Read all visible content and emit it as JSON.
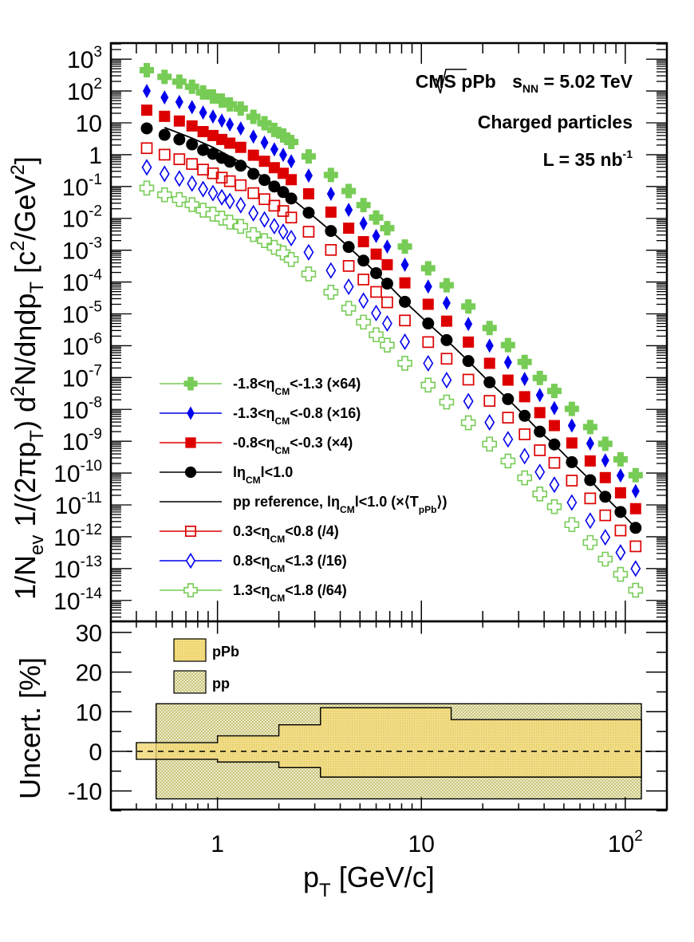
{
  "chart_data": [
    {
      "type": "scatter",
      "panel": "upper",
      "xscale": "log",
      "yscale": "log",
      "xlim": [
        0.3,
        160
      ],
      "ylim": [
        2.2e-15,
        3200.0
      ],
      "xlabel": "p_T [GeV/c]",
      "ylabel": "1/N_ev 1/(2πp_T) d²N/dηdp_T [c²/GeV²]",
      "ylabel_parts": {
        "a": "1/N",
        "a_sub": "ev",
        "b": " 1/(2πp",
        "b_sub": "T",
        "c": ") d",
        "c_sup": "2",
        "d": "N/dηdp",
        "d_sub": "T",
        "e": " [c",
        "e_sup": "2",
        "f": "/GeV",
        "f_sup": "2",
        "g": "]"
      },
      "y_ticks": [
        {
          "base": "10",
          "exp": "3",
          "value": 1000.0
        },
        {
          "base": "10",
          "exp": "2",
          "value": 100.0
        },
        {
          "base": "10",
          "exp": "",
          "value": 10
        },
        {
          "base": "1",
          "exp": "",
          "value": 1
        },
        {
          "base": "10",
          "exp": "-1",
          "value": 0.1
        },
        {
          "base": "10",
          "exp": "-2",
          "value": 0.01
        },
        {
          "base": "10",
          "exp": "-3",
          "value": 0.001
        },
        {
          "base": "10",
          "exp": "-4",
          "value": 0.0001
        },
        {
          "base": "10",
          "exp": "-5",
          "value": 1e-05
        },
        {
          "base": "10",
          "exp": "-6",
          "value": 1e-06
        },
        {
          "base": "10",
          "exp": "-7",
          "value": 1e-07
        },
        {
          "base": "10",
          "exp": "-8",
          "value": 1e-08
        },
        {
          "base": "10",
          "exp": "-9",
          "value": 1e-09
        },
        {
          "base": "10",
          "exp": "-10",
          "value": 1e-10
        },
        {
          "base": "10",
          "exp": "-11",
          "value": 1e-11
        },
        {
          "base": "10",
          "exp": "-12",
          "value": 1e-12
        },
        {
          "base": "10",
          "exp": "-13",
          "value": 1e-13
        },
        {
          "base": "10",
          "exp": "-14",
          "value": 1e-14
        }
      ],
      "annotations": {
        "line1_a": "CMS pPb ",
        "line1_s": "s",
        "line1_sub": "NN",
        "line1_b": " = 5.02 TeV",
        "line2": "Charged particles",
        "line3_a": "L = 35 nb",
        "line3_sup": "-1"
      },
      "x": [
        0.45,
        0.55,
        0.65,
        0.75,
        0.85,
        0.95,
        1.05,
        1.15,
        1.3,
        1.5,
        1.7,
        1.9,
        2.1,
        2.3,
        2.8,
        3.6,
        4.4,
        5.2,
        6.0,
        6.8,
        8.3,
        10.8,
        13.3,
        17,
        21.6,
        26.6,
        32.1,
        38.1,
        44.9,
        54.7,
        67.3,
        79.8,
        94.8,
        112.4
      ],
      "series": [
        {
          "name": "-1.8<η_CM<-1.3 (×64)",
          "label": {
            "a": "-1.8<η",
            "sub": "CM",
            "b": "<-1.3 (×64)"
          },
          "color": "#77cc55",
          "marker": "cross-filled",
          "values": [
            450,
            278,
            196,
            136,
            90,
            67,
            50,
            38,
            28,
            15.4,
            9.7,
            6.0,
            4.0,
            2.5,
            0.88,
            0.23,
            0.072,
            0.026,
            0.0106,
            0.0049,
            0.0013,
            0.00027,
            7.9e-05,
            1.7e-05,
            3.6e-06,
            1.05e-06,
            3.1e-07,
            9.7e-08,
            3.8e-08,
            1.04e-08,
            2.8e-09,
            8.3e-10,
            2.7e-10,
            8.6e-11
          ]
        },
        {
          "name": "-1.3<η_CM<-0.8 (×16)",
          "label": {
            "a": "-1.3<η",
            "sub": "CM",
            "b": "<-0.8 (×16)"
          },
          "color": "#0000ee",
          "marker": "diamond-filled",
          "values": [
            100,
            63,
            45,
            31,
            21,
            15.8,
            11.7,
            8.9,
            6.7,
            3.7,
            2.4,
            1.47,
            0.99,
            0.62,
            0.22,
            0.059,
            0.0184,
            0.0069,
            0.0028,
            0.0013,
            0.00035,
            7.2e-05,
            2.2e-05,
            4.8e-06,
            1e-06,
            3e-07,
            9e-08,
            2.8e-08,
            1.1e-08,
            3.1e-09,
            8.5e-10,
            2.5e-10,
            8.4e-11,
            2.7e-11
          ]
        },
        {
          "name": "-0.8<η_CM<-0.3 (×4)",
          "label": {
            "a": "-0.8<η",
            "sub": "CM",
            "b": "<-0.3 (×4)"
          },
          "color": "#dd0000",
          "marker": "square-filled",
          "values": [
            25,
            16,
            11.4,
            8.0,
            5.3,
            4.0,
            3.0,
            2.3,
            1.7,
            0.96,
            0.62,
            0.39,
            0.26,
            0.164,
            0.059,
            0.0157,
            0.0049,
            0.00185,
            0.00075,
            0.00035,
            9.4e-05,
            2e-05,
            5.9e-06,
            1.3e-06,
            2.8e-07,
            8.3e-08,
            2.5e-08,
            7.9e-09,
            3.1e-09,
            8.8e-10,
            2.4e-10,
            7.2e-11,
            2.4e-11,
            7.6e-12
          ]
        },
        {
          "name": "|η_CM|<1.0",
          "label": {
            "a": "lη",
            "sub": "CM",
            "b": "l<1.0"
          },
          "color": "#000000",
          "marker": "circle-filled",
          "values": [
            6.7,
            4.2,
            3.0,
            2.1,
            1.4,
            1.06,
            0.79,
            0.6,
            0.45,
            0.25,
            0.16,
            0.1,
            0.067,
            0.042,
            0.015,
            0.004,
            0.00126,
            0.00047,
            0.00019,
            8.9e-05,
            2.4e-05,
            5e-06,
            1.5e-06,
            3.3e-07,
            7.1e-08,
            2.1e-08,
            6.3e-09,
            2e-09,
            7.9e-10,
            2.2e-10,
            6e-11,
            1.8e-11,
            6e-12,
            1.9e-12
          ]
        },
        {
          "name": "pp reference, |η_CM|<1.0 (×⟨T_pPb⟩)",
          "label": {
            "a": "pp reference, lη",
            "sub": "CM",
            "b": "l<1.0 (×⟨T",
            "sub2": "pPb",
            "c": "⟩)"
          },
          "color": "#000000",
          "marker": "line",
          "x": [
            0.55,
            0.75,
            0.95,
            1.3,
            1.9,
            2.8,
            3.6,
            4.4,
            5.2,
            6.0,
            6.8,
            8.3,
            10.8,
            13.3,
            17,
            21.6,
            26.6,
            32.1,
            38.1,
            44.9,
            54.7,
            67.3,
            79.8,
            94.8,
            112.4
          ],
          "values": [
            7.1,
            3.3,
            1.7,
            0.58,
            0.115,
            0.0155,
            0.004,
            0.00126,
            0.00047,
            0.00019,
            8.9e-05,
            2.4e-05,
            5e-06,
            1.5e-06,
            3.3e-07,
            7.1e-08,
            2.1e-08,
            6.3e-09,
            2e-09,
            7.9e-10,
            2.2e-10,
            6e-11,
            1.8e-11,
            6e-12,
            1.9e-12
          ]
        },
        {
          "name": "0.3<η_CM<0.8 (/4)",
          "label": {
            "a": "0.3<η",
            "sub": "CM",
            "b": "<0.8 (/4)"
          },
          "color": "#dd0000",
          "marker": "square-open",
          "values": [
            1.6,
            1.0,
            0.72,
            0.51,
            0.34,
            0.26,
            0.19,
            0.147,
            0.11,
            0.062,
            0.04,
            0.025,
            0.017,
            0.0106,
            0.0038,
            0.00102,
            0.00032,
            0.00012,
            4.9e-05,
            2.3e-05,
            6.2e-06,
            1.3e-06,
            3.9e-07,
            8.6e-08,
            1.85e-08,
            5.5e-09,
            1.65e-09,
            5.2e-10,
            2.1e-10,
            5.8e-11,
            1.6e-11,
            4.7e-12,
            1.57e-12,
            5e-13
          ]
        },
        {
          "name": "0.8<η_CM<1.3 (/16)",
          "label": {
            "a": "0.8<η",
            "sub": "CM",
            "b": "<1.3 (/16)"
          },
          "color": "#0000ee",
          "marker": "diamond-open",
          "values": [
            0.4,
            0.25,
            0.178,
            0.124,
            0.083,
            0.062,
            0.046,
            0.035,
            0.026,
            0.0145,
            0.0092,
            0.0057,
            0.0038,
            0.0024,
            0.00086,
            0.00023,
            7.1e-05,
            2.6e-05,
            1.06e-05,
            5e-06,
            1.33e-06,
            2.8e-07,
            8.3e-08,
            1.8e-08,
            3.9e-09,
            1.15e-09,
            3.4e-10,
            1.08e-10,
            4.3e-11,
            1.19e-11,
            3.2e-12,
            9.6e-13,
            3.2e-13,
            1e-13
          ]
        },
        {
          "name": "1.3<η_CM<1.8 (/64)",
          "label": {
            "a": "1.3<η",
            "sub": "CM",
            "b": "<1.8 (/64)"
          },
          "color": "#77cc55",
          "marker": "cross-open",
          "values": [
            0.089,
            0.055,
            0.039,
            0.027,
            0.018,
            0.0136,
            0.0101,
            0.0076,
            0.0056,
            0.0031,
            0.002,
            0.00123,
            0.00082,
            0.00051,
            0.00018,
            4.8e-05,
            1.5e-05,
            5.5e-06,
            2.2e-06,
            1.04e-06,
            2.8e-07,
            5.8e-08,
            1.7e-08,
            3.8e-09,
            8.1e-10,
            2.4e-10,
            7.1e-11,
            2.2e-11,
            8.8e-12,
            2.4e-12,
            6.6e-13,
            1.98e-13,
            6.6e-14,
            2.1e-14
          ]
        }
      ],
      "legend": "lower-left"
    },
    {
      "type": "area",
      "panel": "lower",
      "xscale": "log",
      "xlim": [
        0.3,
        160
      ],
      "ylim": [
        -14.7,
        32.8
      ],
      "xlabel": "p_T [GeV/c]",
      "xlabel_parts": {
        "a": "p",
        "sub": "T",
        "b": " [GeV/c]"
      },
      "ylabel": "Uncert. [%]",
      "x_ticks": [
        {
          "base": "1",
          "exp": "",
          "value": 1
        },
        {
          "base": "10",
          "exp": "",
          "value": 10
        },
        {
          "base": "10",
          "exp": "2",
          "value": 100
        }
      ],
      "y_ticks": [
        {
          "label": "30",
          "value": 30
        },
        {
          "label": "20",
          "value": 20
        },
        {
          "label": "10",
          "value": 10
        },
        {
          "label": "0",
          "value": 0
        },
        {
          "label": "-10",
          "value": -10
        }
      ],
      "reference_line": {
        "value": 0,
        "style": "dashed"
      },
      "series": [
        {
          "name": "pp",
          "color": "#d8d49a",
          "fill_pattern": "checker",
          "bins": [
            {
              "x0": 0.5,
              "x1": 120,
              "lo": -12,
              "hi": 12
            }
          ]
        },
        {
          "name": "pPb",
          "color": "#f0d060",
          "fill_pattern": "dots",
          "bins": [
            {
              "x0": 0.4,
              "x1": 0.5,
              "lo": -2.0,
              "hi": 2.2
            },
            {
              "x0": 0.5,
              "x1": 1.0,
              "lo": -2.0,
              "hi": 2.2
            },
            {
              "x0": 1.0,
              "x1": 2.0,
              "lo": -2.7,
              "hi": 3.9
            },
            {
              "x0": 2.0,
              "x1": 3.2,
              "lo": -4.1,
              "hi": 6.7
            },
            {
              "x0": 3.2,
              "x1": 14.0,
              "lo": -6.5,
              "hi": 11.0
            },
            {
              "x0": 14.0,
              "x1": 120,
              "lo": -6.5,
              "hi": 8.0
            }
          ]
        }
      ],
      "legend": [
        {
          "label": "pPb",
          "series": "pPb"
        },
        {
          "label": "pp",
          "series": "pp"
        }
      ]
    }
  ]
}
